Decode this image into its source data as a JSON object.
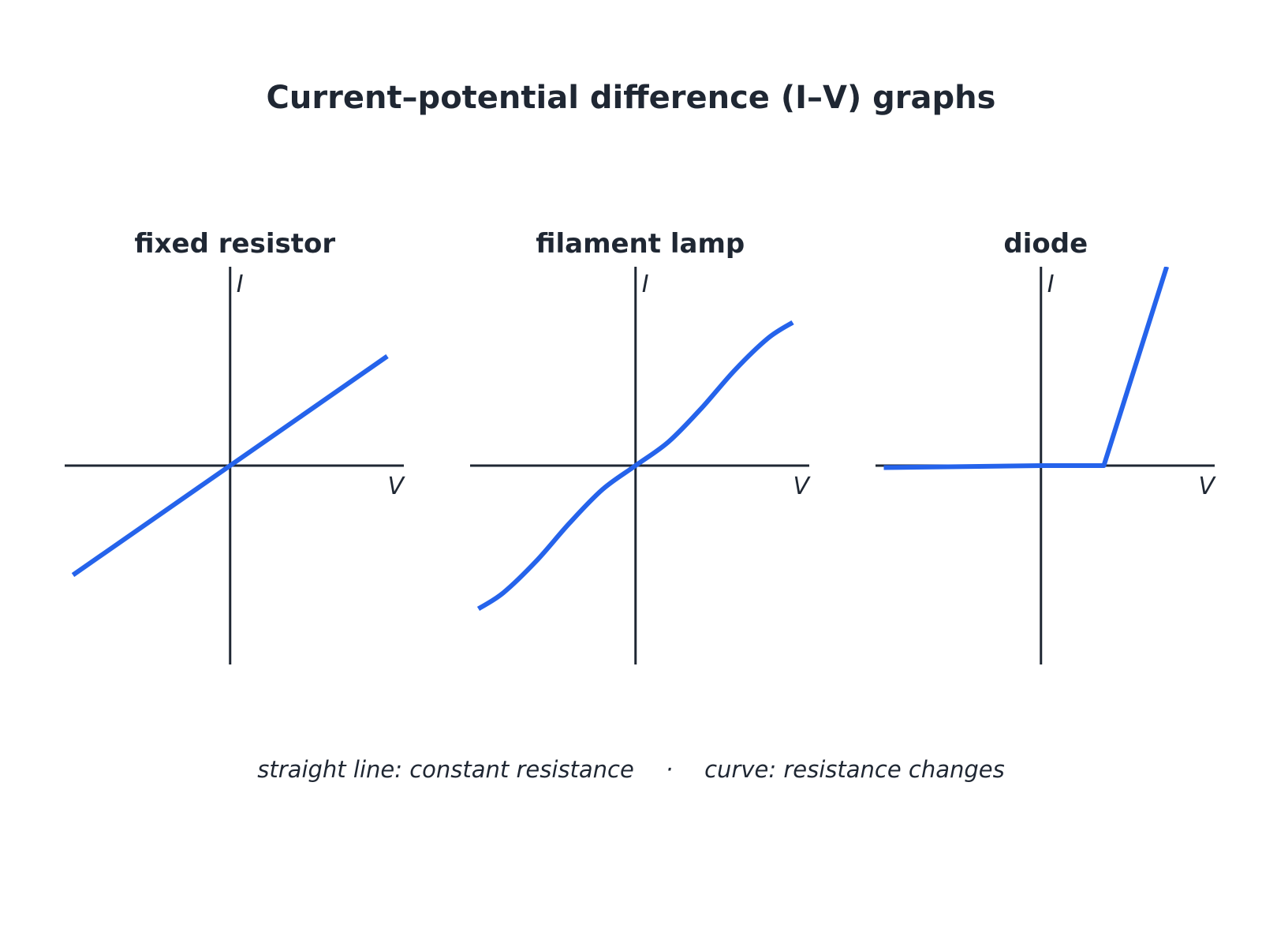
{
  "title": "Current–potential difference (I–V) graphs",
  "caption": {
    "left": "straight line: constant resistance",
    "separator": "·",
    "right": "curve: resistance changes"
  },
  "colors": {
    "curve": "#2563eb",
    "axis": "#1f2733",
    "text": "#1f2733"
  },
  "chart_data": [
    {
      "type": "line",
      "title": "fixed resistor",
      "xlabel": "V",
      "ylabel": "I",
      "xlim": [
        -1,
        1.05
      ],
      "ylim": [
        -1,
        1
      ],
      "grid": false,
      "series": [
        {
          "x": [
            -0.95,
            0.95
          ],
          "y": [
            -0.55,
            0.55
          ]
        }
      ]
    },
    {
      "type": "line",
      "title": "filament lamp",
      "xlabel": "V",
      "ylabel": "I",
      "xlim": [
        -1,
        1.05
      ],
      "ylim": [
        -1,
        1
      ],
      "grid": false,
      "series": [
        {
          "x": [
            -0.95,
            -0.8,
            -0.6,
            -0.4,
            -0.2,
            0,
            0.2,
            0.4,
            0.6,
            0.8,
            0.95
          ],
          "y": [
            -0.72,
            -0.64,
            -0.48,
            -0.29,
            -0.12,
            0,
            0.12,
            0.29,
            0.48,
            0.64,
            0.72
          ]
        }
      ]
    },
    {
      "type": "line",
      "title": "diode",
      "xlabel": "V",
      "ylabel": "I",
      "xlim": [
        -1,
        1.05
      ],
      "ylim": [
        -1,
        1
      ],
      "grid": false,
      "series": [
        {
          "x": [
            -0.95,
            0,
            0.38,
            0.76
          ],
          "y": [
            -0.01,
            0,
            0,
            1
          ]
        }
      ]
    }
  ]
}
